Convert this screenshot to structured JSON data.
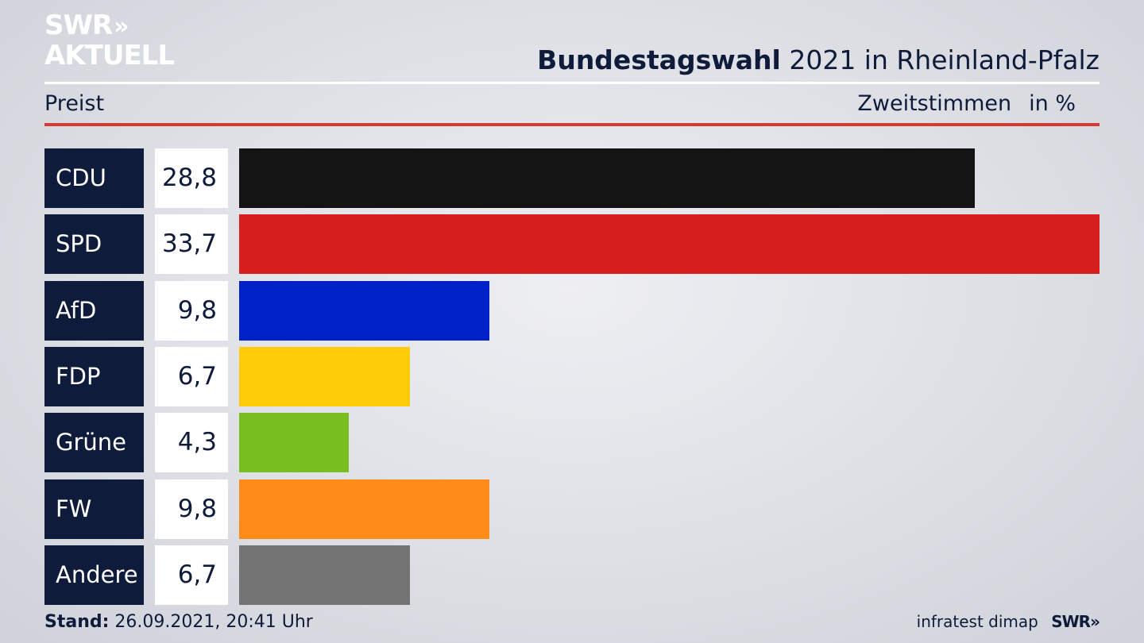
{
  "logo": {
    "line1": "SWR",
    "chevrons": "»",
    "line2": "AKTUELL"
  },
  "header": {
    "title_bold": "Bundestagswahl",
    "title_rest": "2021 in Rheinland-Pfalz",
    "subtitle_left": "Preist",
    "subtitle_right_a": "Zweitstimmen",
    "subtitle_right_b": "in %"
  },
  "chart_data": {
    "type": "bar",
    "orientation": "horizontal",
    "categories": [
      "CDU",
      "SPD",
      "AfD",
      "FDP",
      "Grüne",
      "FW",
      "Andere"
    ],
    "values": [
      28.8,
      33.7,
      9.8,
      6.7,
      4.3,
      9.8,
      6.7
    ],
    "value_labels": [
      "28,8",
      "33,7",
      "9,8",
      "6,7",
      "4,3",
      "9,8",
      "6,7"
    ],
    "colors": [
      "#141414",
      "#d81f1f",
      "#0020c8",
      "#ffcc0a",
      "#78be1e",
      "#ff8c19",
      "#737373"
    ],
    "xlim": [
      0,
      33.7
    ],
    "grid": false
  },
  "footer": {
    "stand_label": "Stand:",
    "stand_value": "26.09.2021, 20:41 Uhr",
    "source": "infratest dimap",
    "brand": "SWR",
    "brand_chevrons": "»"
  }
}
